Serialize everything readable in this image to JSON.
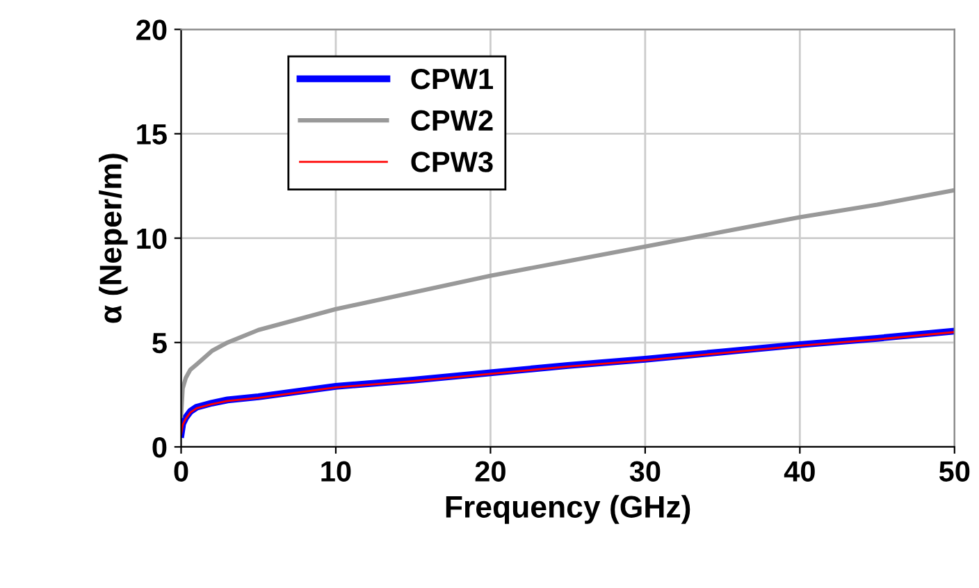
{
  "chart_data": {
    "type": "line",
    "xlabel": "Frequency (GHz)",
    "ylabel": "α (Neper/m)",
    "xlim": [
      0,
      50
    ],
    "ylim": [
      0,
      20
    ],
    "xticks": [
      0,
      10,
      20,
      30,
      40,
      50
    ],
    "yticks": [
      0,
      5,
      10,
      15,
      20
    ],
    "grid": true,
    "legend": "top left",
    "marker": "none",
    "line_style": "solid",
    "series": [
      {
        "name": "CPW1",
        "color": "#0000ff",
        "x": [
          0,
          0.1,
          0.3,
          0.6,
          1,
          2,
          3,
          5,
          7,
          10,
          15,
          20,
          25,
          30,
          35,
          40,
          45,
          50
        ],
        "values": [
          0.6,
          1.1,
          1.4,
          1.7,
          1.9,
          2.1,
          2.25,
          2.4,
          2.6,
          2.9,
          3.2,
          3.55,
          3.9,
          4.2,
          4.55,
          4.9,
          5.2,
          5.55
        ]
      },
      {
        "name": "CPW2",
        "color": "#999999",
        "x": [
          0,
          0.1,
          0.3,
          0.6,
          1,
          2,
          3,
          5,
          7,
          10,
          15,
          20,
          25,
          30,
          35,
          40,
          45,
          50
        ],
        "values": [
          1.5,
          2.8,
          3.3,
          3.7,
          3.95,
          4.6,
          5.0,
          5.6,
          6.0,
          6.6,
          7.4,
          8.2,
          8.9,
          9.6,
          10.3,
          11.0,
          11.6,
          12.3
        ]
      },
      {
        "name": "CPW3",
        "color": "#ff0000",
        "x": [
          0,
          0.1,
          0.3,
          0.6,
          1,
          2,
          3,
          5,
          7,
          10,
          15,
          20,
          25,
          30,
          35,
          40,
          45,
          50
        ],
        "values": [
          0.6,
          1.05,
          1.35,
          1.65,
          1.85,
          2.05,
          2.2,
          2.35,
          2.55,
          2.85,
          3.15,
          3.5,
          3.85,
          4.15,
          4.5,
          4.85,
          5.15,
          5.5
        ]
      }
    ]
  }
}
